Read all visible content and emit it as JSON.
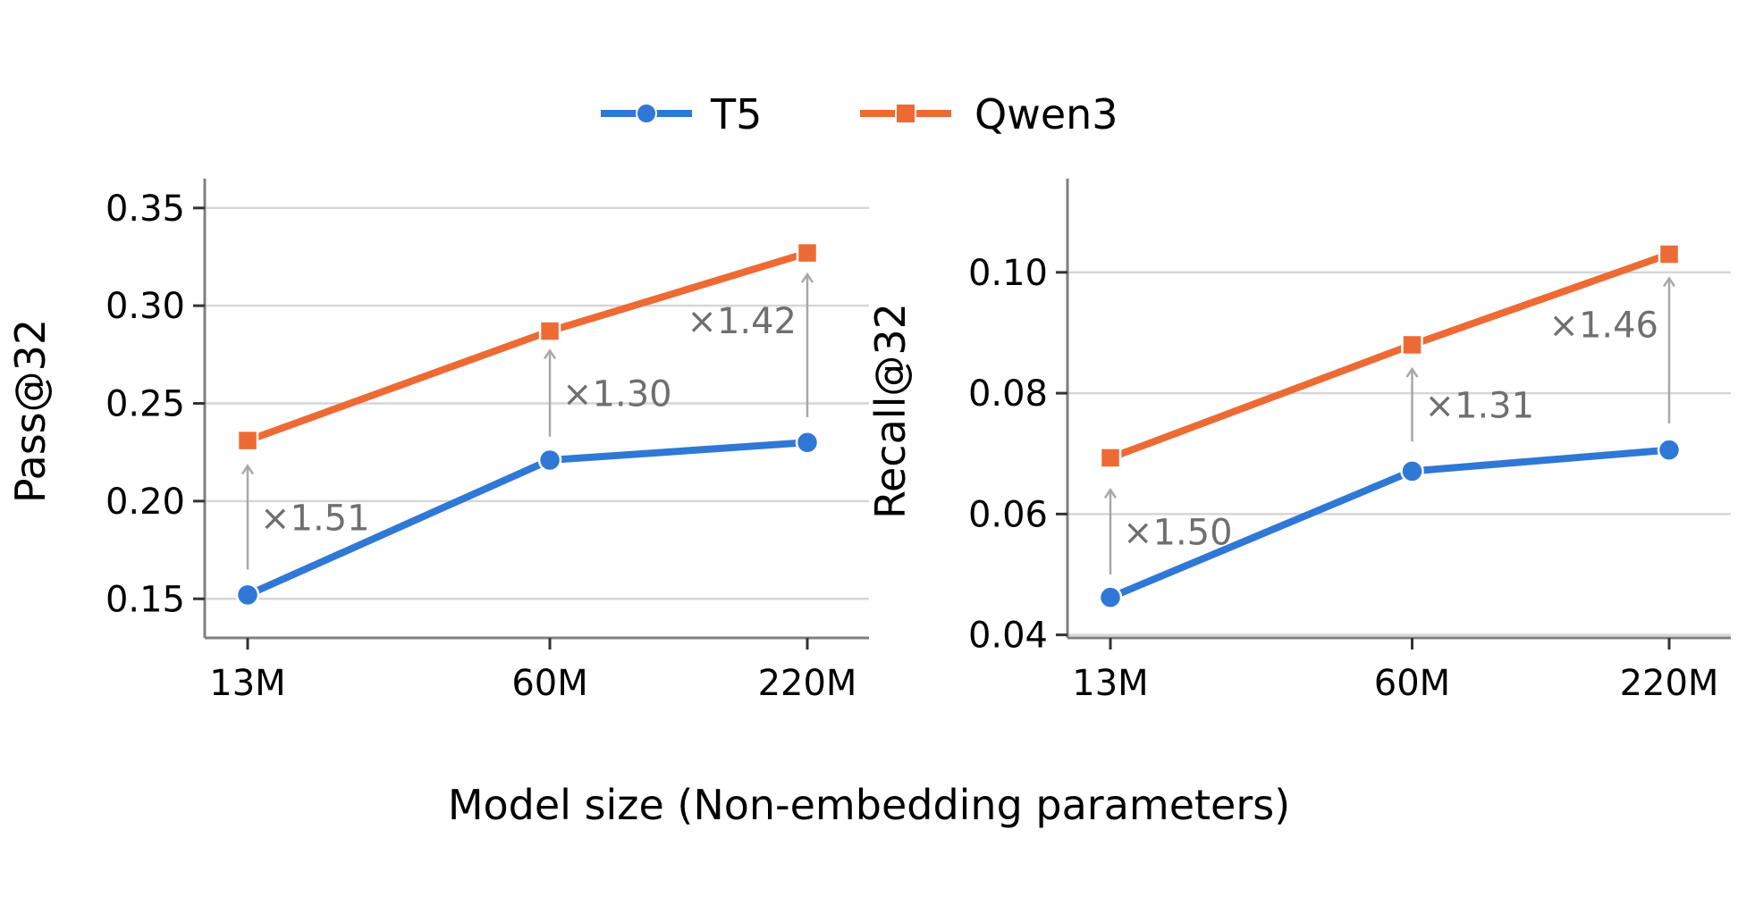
{
  "legend": [
    {
      "name": "T5",
      "color": "#2f78d6",
      "marker": "circle"
    },
    {
      "name": "Qwen3",
      "color": "#ee6a34",
      "marker": "square"
    }
  ],
  "shared_xlabel": "Model size (Non-embedding parameters)",
  "chart_data": [
    {
      "type": "line",
      "ylabel": "Pass@32",
      "categories": [
        "13M",
        "60M",
        "220M"
      ],
      "x_positions": [
        0,
        0.54,
        1
      ],
      "ylim": [
        0.13,
        0.365
      ],
      "yticks": [
        0.15,
        0.2,
        0.25,
        0.3,
        0.35
      ],
      "ytick_labels": [
        "0.15",
        "0.20",
        "0.25",
        "0.30",
        "0.35"
      ],
      "grid": true,
      "series": [
        {
          "name": "T5",
          "values": [
            0.152,
            0.221,
            0.23
          ]
        },
        {
          "name": "Qwen3",
          "values": [
            0.231,
            0.287,
            0.327
          ]
        }
      ],
      "annotations": [
        {
          "text": "×1.51",
          "category": "13M",
          "from": 0.165,
          "to": 0.218
        },
        {
          "text": "×1.30",
          "category": "60M",
          "from": 0.233,
          "to": 0.277
        },
        {
          "text": "×1.42",
          "category": "220M",
          "from": 0.243,
          "to": 0.316
        }
      ]
    },
    {
      "type": "line",
      "ylabel": "Recall@32",
      "categories": [
        "13M",
        "60M",
        "220M"
      ],
      "x_positions": [
        0,
        0.54,
        1
      ],
      "ylim": [
        0.0395,
        0.1155
      ],
      "yticks": [
        0.04,
        0.06,
        0.08,
        0.1
      ],
      "ytick_labels": [
        "0.04",
        "0.06",
        "0.08",
        "0.10"
      ],
      "grid": true,
      "series": [
        {
          "name": "T5",
          "values": [
            0.0462,
            0.0671,
            0.0706
          ]
        },
        {
          "name": "Qwen3",
          "values": [
            0.0693,
            0.088,
            0.103
          ]
        }
      ],
      "annotations": [
        {
          "text": "×1.50",
          "category": "13M",
          "from": 0.05,
          "to": 0.064
        },
        {
          "text": "×1.31",
          "category": "60M",
          "from": 0.072,
          "to": 0.084
        },
        {
          "text": "×1.46",
          "category": "220M",
          "from": 0.075,
          "to": 0.099
        }
      ]
    }
  ]
}
